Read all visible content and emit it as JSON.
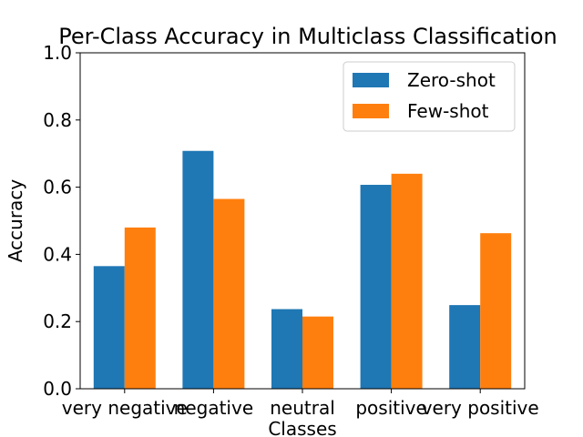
{
  "chart_data": {
    "type": "bar",
    "title": "Per-Class Accuracy in Multiclass Classification",
    "xlabel": "Classes",
    "ylabel": "Accuracy",
    "categories": [
      "very negative",
      "negative",
      "neutral",
      "positive",
      "very positive"
    ],
    "series": [
      {
        "name": "Zero-shot",
        "color": "#1f77b4",
        "values": [
          0.365,
          0.708,
          0.237,
          0.607,
          0.249
        ]
      },
      {
        "name": "Few-shot",
        "color": "#ff7f0e",
        "values": [
          0.48,
          0.565,
          0.215,
          0.64,
          0.463
        ]
      }
    ],
    "ylim": [
      0,
      1.0
    ],
    "yticks": [
      "0.0",
      "0.2",
      "0.4",
      "0.6",
      "0.8",
      "1.0"
    ],
    "grid": false,
    "legend_position": "top-right"
  }
}
